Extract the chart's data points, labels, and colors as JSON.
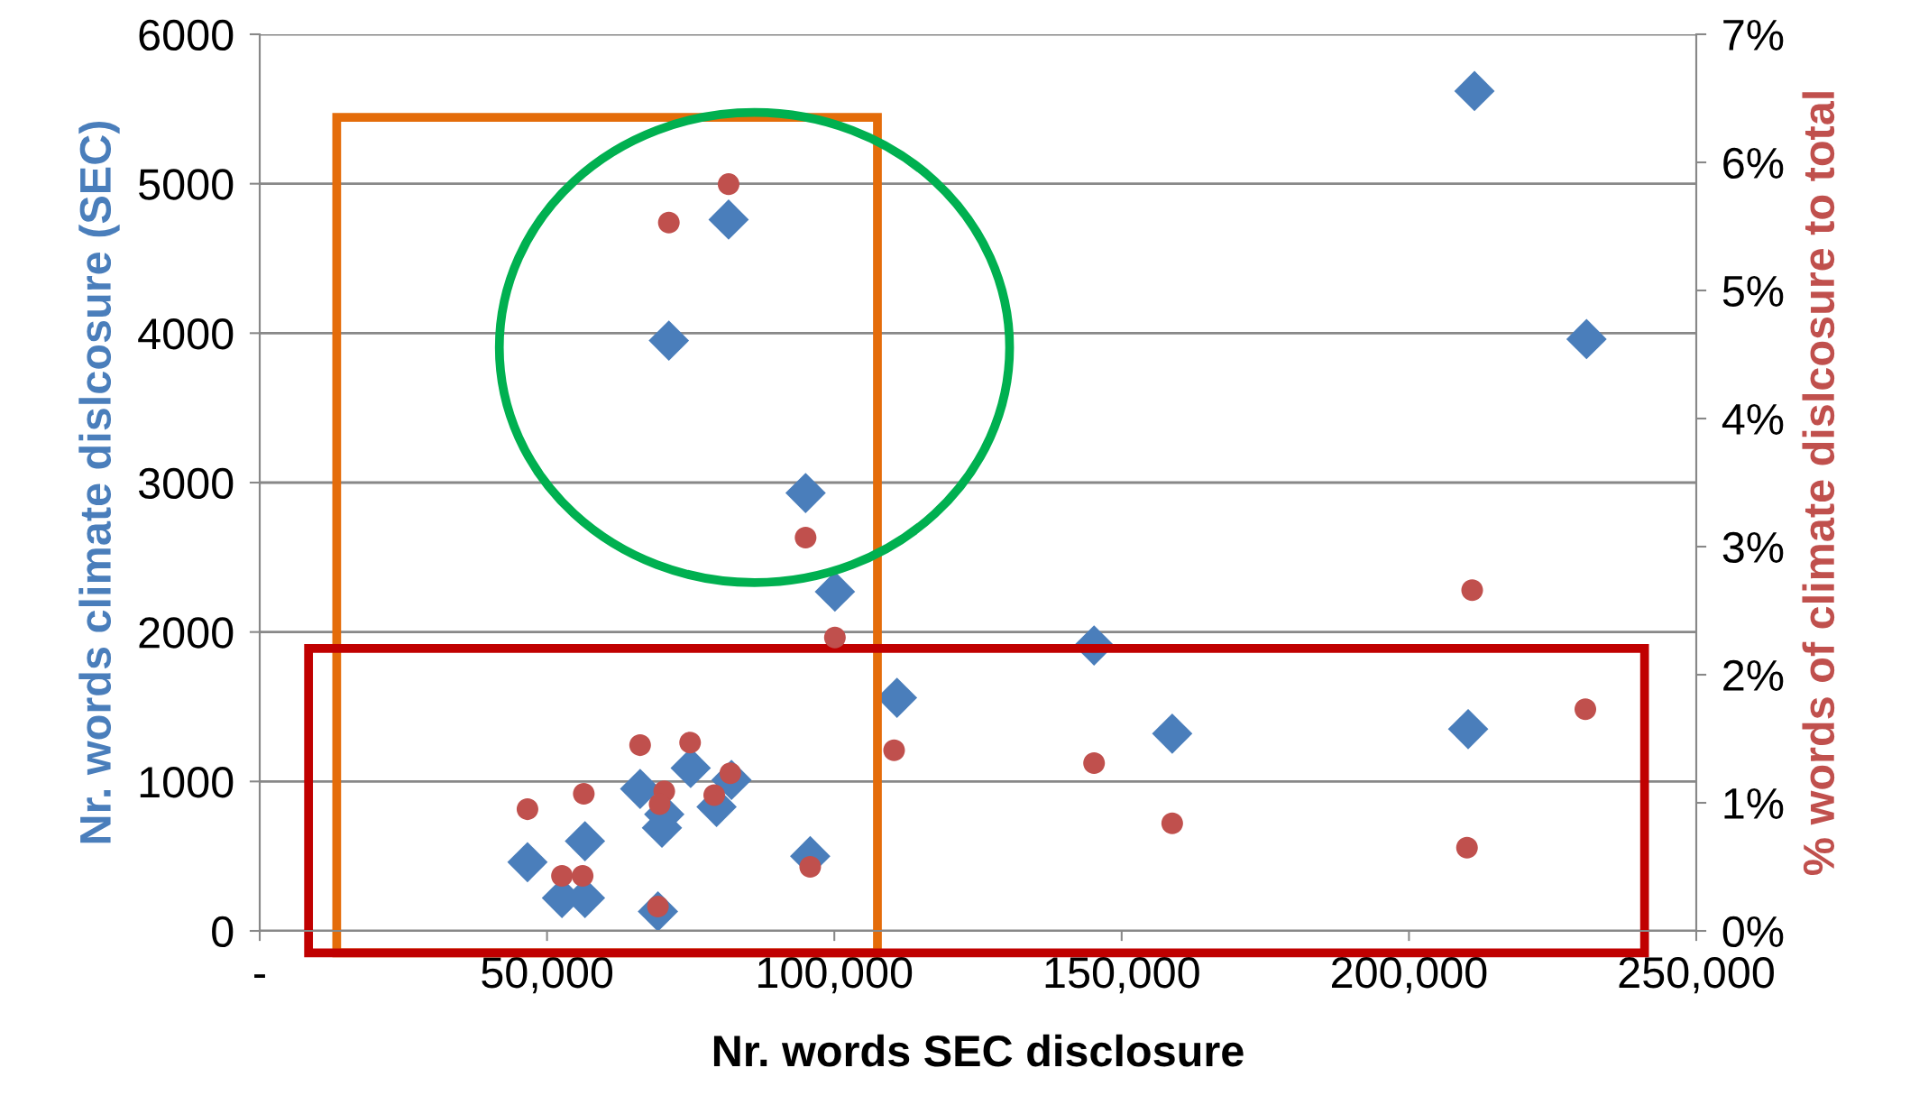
{
  "chart_data": {
    "type": "scatter",
    "xlabel": "Nr. words SEC disclosure",
    "ylabel": "Nr. words climate dislcosure (SEC)",
    "y2label": "% words of climate dislcosure to total",
    "series": [
      {
        "marker": "diamond",
        "color": "#4a7ebb",
        "x": [
          211400,
          230900,
          81600,
          71200,
          95000,
          100100,
          110900,
          145200,
          158800,
          210300,
          95800,
          46600,
          52600,
          56600,
          56600,
          66200,
          70400,
          70000,
          75000,
          79500,
          82100,
          69300
        ],
        "values": [
          5620,
          3960,
          4760,
          3950,
          2930,
          2270,
          1560,
          1910,
          1320,
          1350,
          500,
          460,
          220,
          220,
          600,
          950,
          780,
          690,
          1090,
          830,
          1010,
          130
        ]
      },
      {
        "marker": "circle",
        "axis": "y2",
        "color": "#c0504d",
        "x": [
          81600,
          71200,
          95000,
          100100,
          211000,
          230700,
          110400,
          145200,
          158800,
          210100,
          95800,
          46600,
          52600,
          56200,
          56400,
          66200,
          74900,
          81900,
          79100,
          70400,
          69600,
          69300
        ],
        "values": [
          5.83,
          5.53,
          3.07,
          2.29,
          2.66,
          1.73,
          1.41,
          1.31,
          0.84,
          0.65,
          0.5,
          0.95,
          0.43,
          0.43,
          1.07,
          1.45,
          1.47,
          1.23,
          1.06,
          1.09,
          0.99,
          0.19
        ]
      }
    ],
    "xlim": [
      0,
      250000
    ],
    "xticks": [
      {
        "value": 0,
        "label": "-"
      },
      {
        "value": 50000,
        "label": "50,000"
      },
      {
        "value": 100000,
        "label": "100,000"
      },
      {
        "value": 150000,
        "label": "150,000"
      },
      {
        "value": 200000,
        "label": "200,000"
      },
      {
        "value": 250000,
        "label": "250,000"
      }
    ],
    "ylim": [
      0,
      6000
    ],
    "yticks": [
      0,
      1000,
      2000,
      3000,
      4000,
      5000,
      6000
    ],
    "y2lim": [
      0,
      7
    ],
    "y2ticks": [
      {
        "value": 0,
        "label": "0%"
      },
      {
        "value": 1,
        "label": "1%"
      },
      {
        "value": 2,
        "label": "2%"
      },
      {
        "value": 3,
        "label": "3%"
      },
      {
        "value": 4,
        "label": "4%"
      },
      {
        "value": 5,
        "label": "5%"
      },
      {
        "value": 6,
        "label": "6%"
      },
      {
        "value": 7,
        "label": "7%"
      }
    ],
    "grid": "y"
  }
}
